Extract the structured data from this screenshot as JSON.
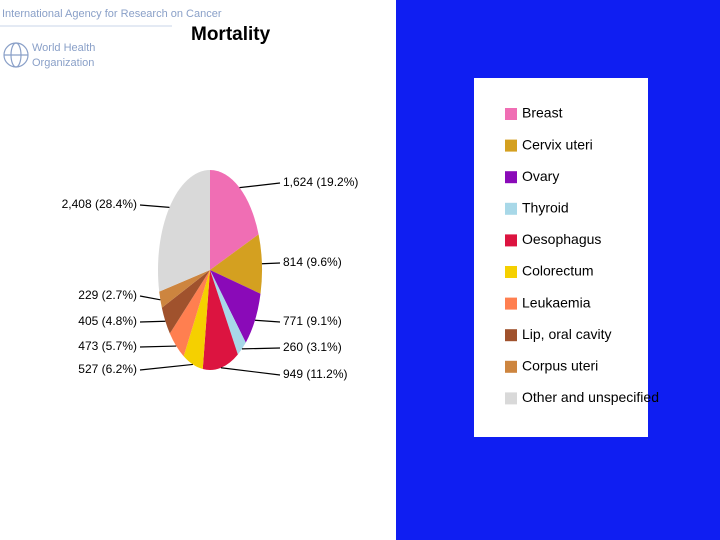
{
  "header": {
    "agency": "International Agency for Research on Cancer",
    "who": [
      "World Health",
      "Organization"
    ]
  },
  "chart_data": {
    "type": "pie",
    "title": "Mortality",
    "categories": [
      "Breast",
      "Cervix uteri",
      "Ovary",
      "Thyroid",
      "Oesophagus",
      "Colorectum",
      "Leukaemia",
      "Lip, oral cavity",
      "Corpus uteri",
      "Other and unspecified"
    ],
    "values": [
      1624,
      814,
      771,
      260,
      949,
      527,
      473,
      405,
      229,
      2408
    ],
    "value_labels": [
      "1,624 (19.2%)",
      "814 (9.6%)",
      "771 (9.1%)",
      "260 (3.1%)",
      "949 (11.2%)",
      "527 (6.2%)",
      "473 (5.7%)",
      "405 (4.8%)",
      "229 (2.7%)",
      "2,408 (28.4%)"
    ],
    "colors": [
      "#f06eb4",
      "#d4a020",
      "#8a0ab8",
      "#a8d8e8",
      "#dc1440",
      "#f5d000",
      "#ff7f50",
      "#a0522d",
      "#cd853f",
      "#d9d9d9"
    ]
  }
}
